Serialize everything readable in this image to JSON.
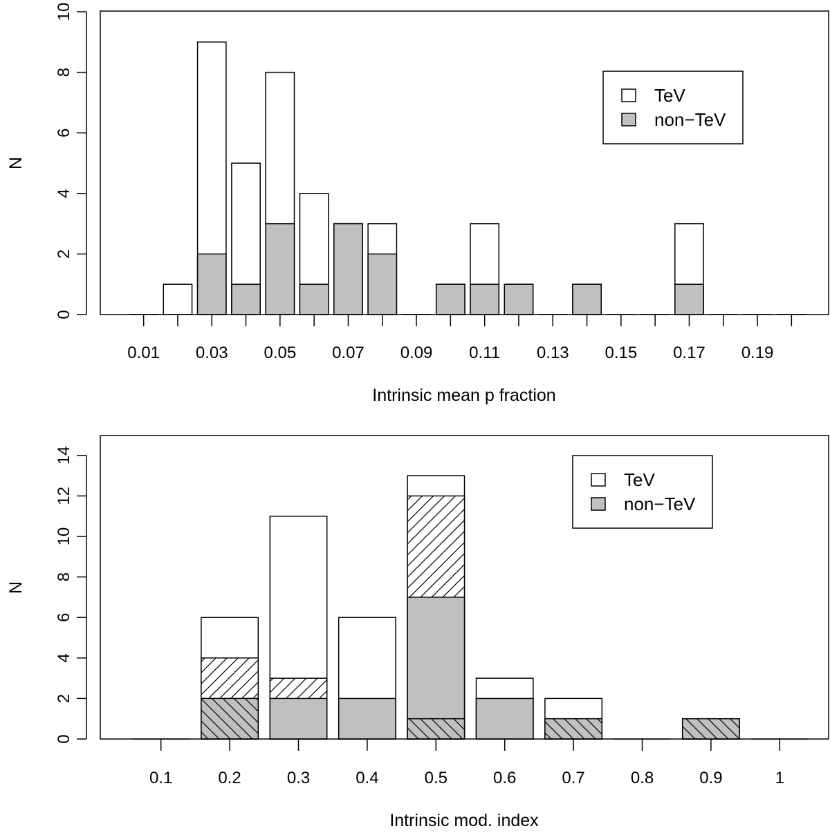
{
  "chart_data": [
    {
      "type": "bar",
      "subtype": "overlaid-histogram",
      "title": "",
      "xlabel": "Intrinsic mean p fraction",
      "ylabel": "N",
      "ylim": [
        0,
        10
      ],
      "y_ticks": [
        "0",
        "2",
        "4",
        "6",
        "8",
        "10"
      ],
      "x_tick_labels": [
        "0.01",
        "0.03",
        "0.05",
        "0.07",
        "0.09",
        "0.11",
        "0.13",
        "0.15",
        "0.17",
        "0.19"
      ],
      "bin_centers": [
        0.01,
        0.02,
        0.03,
        0.04,
        0.05,
        0.06,
        0.07,
        0.08,
        0.09,
        0.1,
        0.11,
        0.12,
        0.13,
        0.14,
        0.15,
        0.16,
        0.17,
        0.18,
        0.19,
        0.2
      ],
      "series": [
        {
          "name": "TeV",
          "color": "#ffffff",
          "values": [
            0,
            1,
            9,
            5,
            8,
            4,
            3,
            3,
            0,
            1,
            3,
            1,
            0,
            1,
            0,
            0,
            3,
            0,
            0,
            0
          ]
        },
        {
          "name": "non-TeV",
          "color": "#c0c0c0",
          "values": [
            0,
            0,
            2,
            1,
            3,
            1,
            3,
            2,
            0,
            1,
            1,
            1,
            0,
            1,
            0,
            0,
            1,
            0,
            0,
            0
          ]
        }
      ],
      "legend": {
        "position": "top-right",
        "entries": [
          "TeV",
          "non-TeV"
        ]
      }
    },
    {
      "type": "bar",
      "subtype": "overlaid-histogram",
      "title": "",
      "xlabel": "Intrinsic mod. index",
      "ylabel": "N",
      "ylim": [
        0,
        14
      ],
      "y_ticks": [
        "0",
        "2",
        "4",
        "6",
        "8",
        "10",
        "12",
        "14"
      ],
      "x_tick_labels": [
        "0.1",
        "0.2",
        "0.3",
        "0.4",
        "0.5",
        "0.6",
        "0.7",
        "0.8",
        "0.9",
        "1"
      ],
      "bin_centers": [
        0.1,
        0.2,
        0.3,
        0.4,
        0.5,
        0.6,
        0.7,
        0.8,
        0.9,
        1.0
      ],
      "series": [
        {
          "name": "TeV",
          "color": "#ffffff",
          "values": [
            0,
            6,
            11,
            6,
            13,
            3,
            2,
            0,
            0,
            0
          ]
        },
        {
          "name": "TeV (hatched ///)",
          "color": "#ffffff",
          "hatch": "forward",
          "values": [
            0,
            4,
            3,
            0,
            12,
            0,
            0,
            0,
            0,
            0
          ]
        },
        {
          "name": "non-TeV",
          "color": "#c0c0c0",
          "values": [
            0,
            2,
            2,
            2,
            7,
            2,
            1,
            0,
            1,
            0
          ]
        },
        {
          "name": "non-TeV (hatched \\\\\\)",
          "color": "#c0c0c0",
          "hatch": "backward",
          "values": [
            0,
            2,
            0,
            0,
            1,
            0,
            1,
            0,
            1,
            0
          ]
        }
      ],
      "legend": {
        "position": "top-right",
        "entries": [
          "TeV",
          "non-TeV"
        ]
      }
    }
  ]
}
